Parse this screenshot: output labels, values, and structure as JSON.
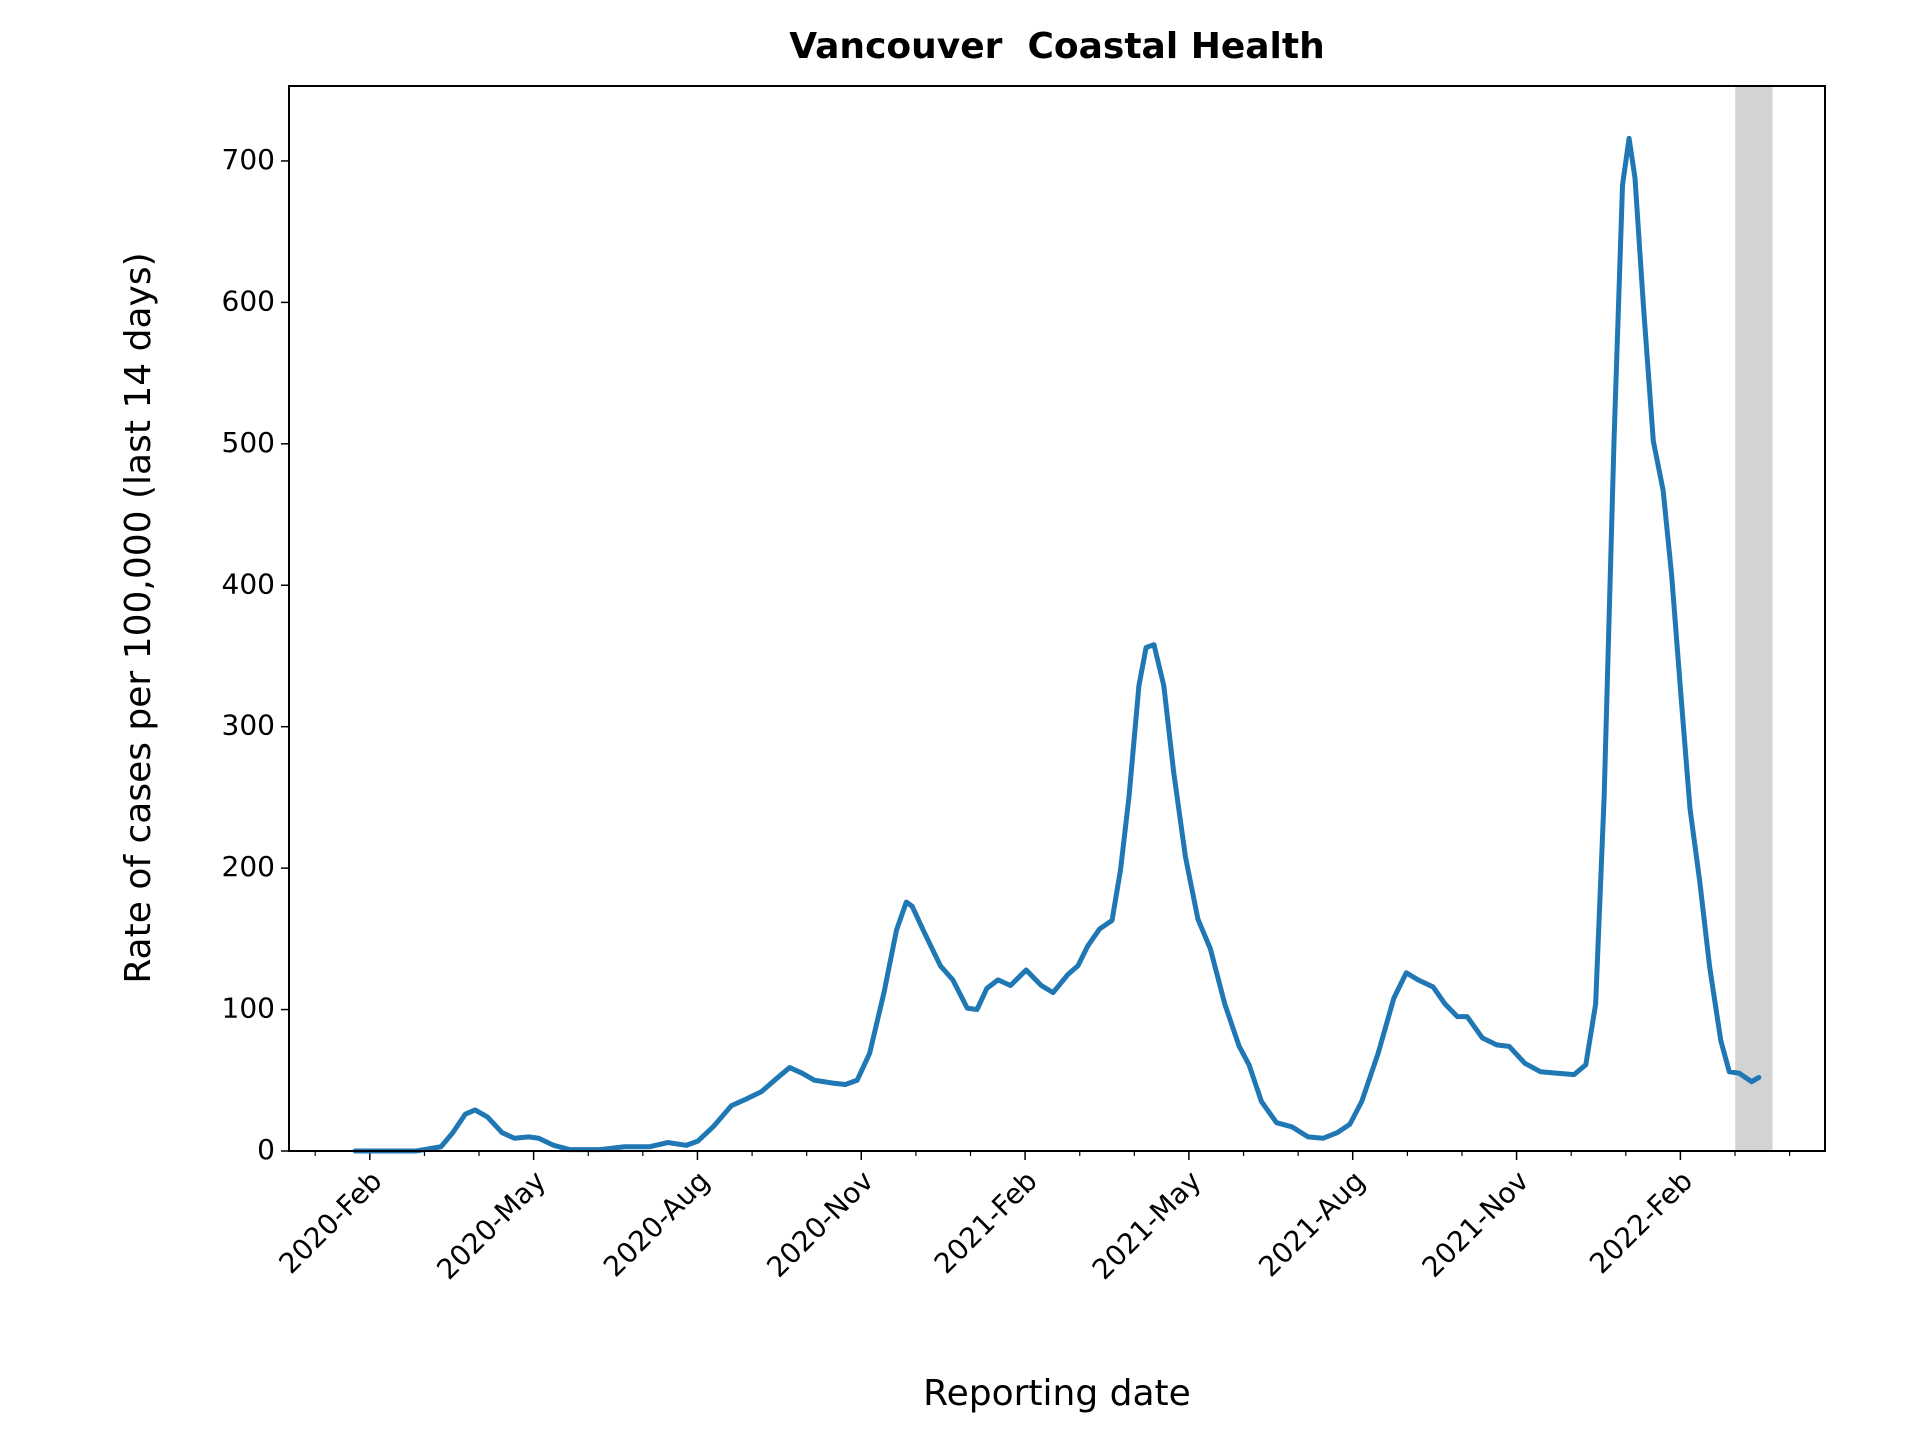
{
  "chart_data": {
    "type": "line",
    "title": "Vancouver  Coastal Health",
    "xlabel": "Reporting date",
    "ylabel": "Rate of cases per 100,000 (last 14 days)",
    "color": "#1f77b4",
    "shade": [
      2022.167,
      2022.224
    ],
    "shade_color": "#d3d3d3",
    "xlim": [
      2019.96,
      2022.304
    ],
    "ylim": [
      0,
      753
    ],
    "xticks": [
      {
        "value": 2020.0833,
        "label": "2020-Feb"
      },
      {
        "value": 2020.3333,
        "label": "2020-May"
      },
      {
        "value": 2020.5833,
        "label": "2020-Aug"
      },
      {
        "value": 2020.8333,
        "label": "2020-Nov"
      },
      {
        "value": 2021.0833,
        "label": "2021-Feb"
      },
      {
        "value": 2021.3333,
        "label": "2021-May"
      },
      {
        "value": 2021.5833,
        "label": "2021-Aug"
      },
      {
        "value": 2021.8333,
        "label": "2021-Nov"
      },
      {
        "value": 2022.0833,
        "label": "2022-Feb"
      }
    ],
    "xminorticks": [
      2020.0,
      2020.1667,
      2020.25,
      2020.4167,
      2020.5,
      2020.6667,
      2020.75,
      2020.9167,
      2021.0,
      2021.1667,
      2021.25,
      2021.4167,
      2021.5,
      2021.6667,
      2021.75,
      2021.9167,
      2022.0,
      2022.1667,
      2022.25
    ],
    "yticks": [
      0,
      100,
      200,
      300,
      400,
      500,
      600,
      700
    ],
    "x": [
      2020.061,
      2020.154,
      2020.192,
      2020.21,
      2020.229,
      2020.244,
      2020.263,
      2020.285,
      2020.304,
      2020.326,
      2020.341,
      2020.364,
      2020.388,
      2020.435,
      2020.472,
      2020.51,
      2020.538,
      2020.566,
      2020.584,
      2020.607,
      2020.635,
      2020.659,
      2020.681,
      2020.706,
      2020.724,
      2020.743,
      2020.762,
      2020.79,
      2020.809,
      2020.827,
      2020.846,
      2020.868,
      2020.887,
      2020.902,
      2020.911,
      2020.93,
      2020.954,
      2020.973,
      2020.995,
      2021.01,
      2021.025,
      2021.042,
      2021.061,
      2021.085,
      2021.108,
      2021.126,
      2021.149,
      2021.164,
      2021.179,
      2021.197,
      2021.216,
      2021.229,
      2021.242,
      2021.257,
      2021.268,
      2021.28,
      2021.295,
      2021.31,
      2021.328,
      2021.347,
      2021.366,
      2021.388,
      2021.41,
      2021.425,
      2021.444,
      2021.467,
      2021.491,
      2021.515,
      2021.538,
      2021.56,
      2021.579,
      2021.597,
      2021.622,
      2021.646,
      2021.665,
      2021.683,
      2021.706,
      2021.724,
      2021.743,
      2021.758,
      2021.781,
      2021.803,
      2021.822,
      2021.846,
      2021.87,
      2021.896,
      2021.921,
      2021.939,
      2021.954,
      2021.967,
      2021.982,
      2021.995,
      2022.005,
      2022.014,
      2022.027,
      2022.042,
      2022.057,
      2022.07,
      2022.083,
      2022.098,
      2022.113,
      2022.128,
      2022.145,
      2022.158,
      2022.173,
      2022.192,
      2022.203
    ],
    "values": [
      0,
      0,
      3,
      13,
      26,
      29,
      24,
      13,
      9,
      10,
      9,
      4,
      1,
      1,
      3,
      3,
      6,
      4,
      7,
      17,
      32,
      37,
      42,
      52,
      59,
      55,
      50,
      48,
      47,
      50,
      69,
      112,
      156,
      176,
      173,
      154,
      131,
      121,
      101,
      100,
      115,
      121,
      117,
      128,
      117,
      112,
      125,
      131,
      145,
      157,
      163,
      199,
      251,
      329,
      356,
      358,
      329,
      268,
      208,
      164,
      143,
      104,
      74,
      61,
      35,
      20,
      17,
      10,
      9,
      13,
      19,
      35,
      69,
      108,
      126,
      121,
      116,
      104,
      95,
      95,
      80,
      75,
      74,
      62,
      56,
      55,
      54,
      61,
      104,
      251,
      502,
      683,
      716,
      688,
      597,
      502,
      467,
      407,
      329,
      242,
      190,
      130,
      78,
      56,
      55,
      49,
      52
    ]
  }
}
